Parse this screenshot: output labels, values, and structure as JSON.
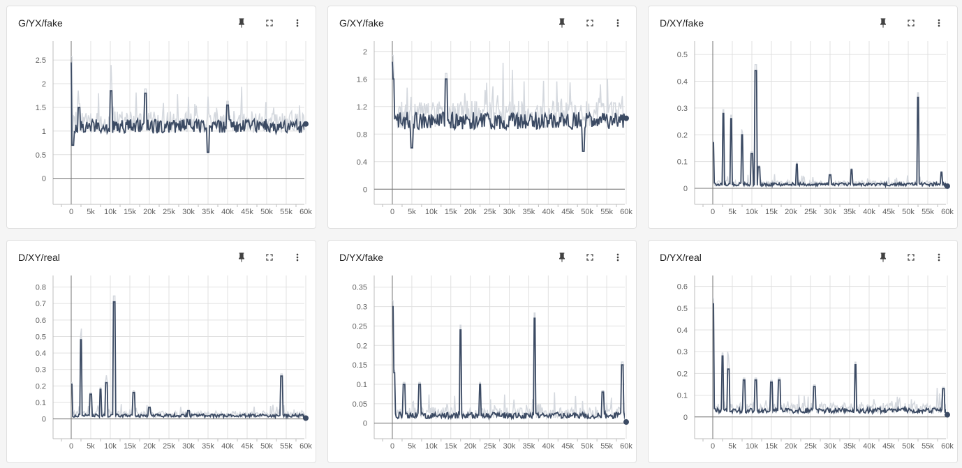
{
  "accent": "#3b4a63",
  "raw_color": "#d4d8de",
  "icons": {
    "pin": "pin-icon",
    "fullscreen": "fullscreen-icon",
    "more": "more-vert-icon"
  },
  "charts": [
    {
      "title": "G/YX/fake",
      "chart_data": {
        "type": "line",
        "title": "G/YX/fake",
        "xlabel": "",
        "ylabel": "",
        "xlim": [
          0,
          60000
        ],
        "ylim": [
          -0.55,
          2.9
        ],
        "yticks": [
          0,
          0.5,
          1,
          1.5,
          2,
          2.5
        ],
        "ytick_labels": [
          "0",
          "0.5",
          "1",
          "1.5",
          "2",
          "2.5"
        ],
        "baseline": 1.1,
        "noise": 0.15,
        "raw_noise": 0.45,
        "spikes": [
          [
            0,
            2.45
          ],
          [
            400,
            0.7
          ],
          [
            2000,
            1.5
          ],
          [
            10200,
            1.85
          ],
          [
            19000,
            1.8
          ],
          [
            40000,
            1.55
          ],
          [
            35000,
            0.55
          ],
          [
            60000,
            1.15
          ]
        ],
        "last": 1.15,
        "grid": true
      }
    },
    {
      "title": "G/XY/fake",
      "chart_data": {
        "type": "line",
        "title": "G/XY/fake",
        "xlabel": "",
        "ylabel": "",
        "xlim": [
          0,
          60000
        ],
        "ylim": [
          -0.22,
          2.15
        ],
        "yticks": [
          0,
          0.4,
          0.8,
          1.2,
          1.6,
          2
        ],
        "ytick_labels": [
          "0",
          "0.4",
          "0.8",
          "1.2",
          "1.6",
          "2"
        ],
        "baseline": 1.0,
        "noise": 0.13,
        "raw_noise": 0.4,
        "spikes": [
          [
            0,
            1.85
          ],
          [
            300,
            1.6
          ],
          [
            13800,
            1.6
          ],
          [
            5000,
            0.6
          ],
          [
            49000,
            0.55
          ],
          [
            60000,
            1.03
          ]
        ],
        "last": 1.03,
        "grid": true
      }
    },
    {
      "title": "D/XY/fake",
      "chart_data": {
        "type": "line",
        "title": "D/XY/fake",
        "xlabel": "",
        "ylabel": "",
        "xlim": [
          0,
          60000
        ],
        "ylim": [
          -0.06,
          0.55
        ],
        "yticks": [
          0,
          0.1,
          0.2,
          0.3,
          0.4,
          0.5
        ],
        "ytick_labels": [
          "0",
          "0.1",
          "0.2",
          "0.3",
          "0.4",
          "0.5"
        ],
        "baseline": 0.015,
        "noise": 0.006,
        "raw_noise": 0.02,
        "spikes": [
          [
            0,
            0.17
          ],
          [
            2700,
            0.28
          ],
          [
            4700,
            0.26
          ],
          [
            7500,
            0.2
          ],
          [
            10000,
            0.13
          ],
          [
            11000,
            0.44
          ],
          [
            11800,
            0.08
          ],
          [
            21500,
            0.09
          ],
          [
            30000,
            0.05
          ],
          [
            35500,
            0.07
          ],
          [
            52500,
            0.34
          ],
          [
            58500,
            0.06
          ],
          [
            60000,
            0.008
          ]
        ],
        "last": 0.008,
        "grid": true
      }
    },
    {
      "title": "D/XY/real",
      "chart_data": {
        "type": "line",
        "title": "D/XY/real",
        "xlabel": "",
        "ylabel": "",
        "xlim": [
          0,
          60000
        ],
        "ylim": [
          -0.12,
          0.87
        ],
        "yticks": [
          0,
          0.1,
          0.2,
          0.3,
          0.4,
          0.5,
          0.6,
          0.7,
          0.8
        ],
        "ytick_labels": [
          "0",
          "0.1",
          "0.2",
          "0.3",
          "0.4",
          "0.5",
          "0.6",
          "0.7",
          "0.8"
        ],
        "baseline": 0.02,
        "noise": 0.01,
        "raw_noise": 0.04,
        "spikes": [
          [
            0,
            0.21
          ],
          [
            2500,
            0.48
          ],
          [
            5000,
            0.15
          ],
          [
            7500,
            0.18
          ],
          [
            9000,
            0.22
          ],
          [
            11000,
            0.71
          ],
          [
            16000,
            0.16
          ],
          [
            20000,
            0.07
          ],
          [
            30000,
            0.05
          ],
          [
            53800,
            0.26
          ],
          [
            60000,
            0.005
          ]
        ],
        "last": 0.005,
        "grid": true
      }
    },
    {
      "title": "D/YX/fake",
      "chart_data": {
        "type": "line",
        "title": "D/YX/fake",
        "xlabel": "",
        "ylabel": "",
        "xlim": [
          0,
          60000
        ],
        "ylim": [
          -0.04,
          0.38
        ],
        "yticks": [
          0,
          0.05,
          0.1,
          0.15,
          0.2,
          0.25,
          0.3,
          0.35
        ],
        "ytick_labels": [
          "0",
          "0.05",
          "0.1",
          "0.15",
          "0.2",
          "0.25",
          "0.3",
          "0.35"
        ],
        "baseline": 0.02,
        "noise": 0.008,
        "raw_noise": 0.03,
        "spikes": [
          [
            0,
            0.3
          ],
          [
            500,
            0.13
          ],
          [
            3000,
            0.1
          ],
          [
            7000,
            0.1
          ],
          [
            17500,
            0.24
          ],
          [
            22500,
            0.1
          ],
          [
            36500,
            0.27
          ],
          [
            54000,
            0.08
          ],
          [
            59000,
            0.15
          ],
          [
            60000,
            0.003
          ]
        ],
        "last": 0.003,
        "grid": true
      }
    },
    {
      "title": "D/YX/real",
      "chart_data": {
        "type": "line",
        "title": "D/YX/real",
        "xlabel": "",
        "ylabel": "",
        "xlim": [
          0,
          60000
        ],
        "ylim": [
          -0.1,
          0.65
        ],
        "yticks": [
          0,
          0.1,
          0.2,
          0.3,
          0.4,
          0.5,
          0.6
        ],
        "ytick_labels": [
          "0",
          "0.1",
          "0.2",
          "0.3",
          "0.4",
          "0.5",
          "0.6"
        ],
        "baseline": 0.03,
        "noise": 0.012,
        "raw_noise": 0.05,
        "spikes": [
          [
            0,
            0.52
          ],
          [
            2500,
            0.28
          ],
          [
            4000,
            0.22
          ],
          [
            8000,
            0.17
          ],
          [
            11000,
            0.17
          ],
          [
            15000,
            0.16
          ],
          [
            17000,
            0.17
          ],
          [
            26000,
            0.14
          ],
          [
            36500,
            0.24
          ],
          [
            59000,
            0.13
          ],
          [
            60000,
            0.01
          ]
        ],
        "last": 0.01,
        "grid": true
      }
    }
  ],
  "xtick_labels": [
    "0",
    "5k",
    "10k",
    "15k",
    "20k",
    "25k",
    "30k",
    "35k",
    "40k",
    "45k",
    "50k",
    "55k",
    "60k"
  ]
}
